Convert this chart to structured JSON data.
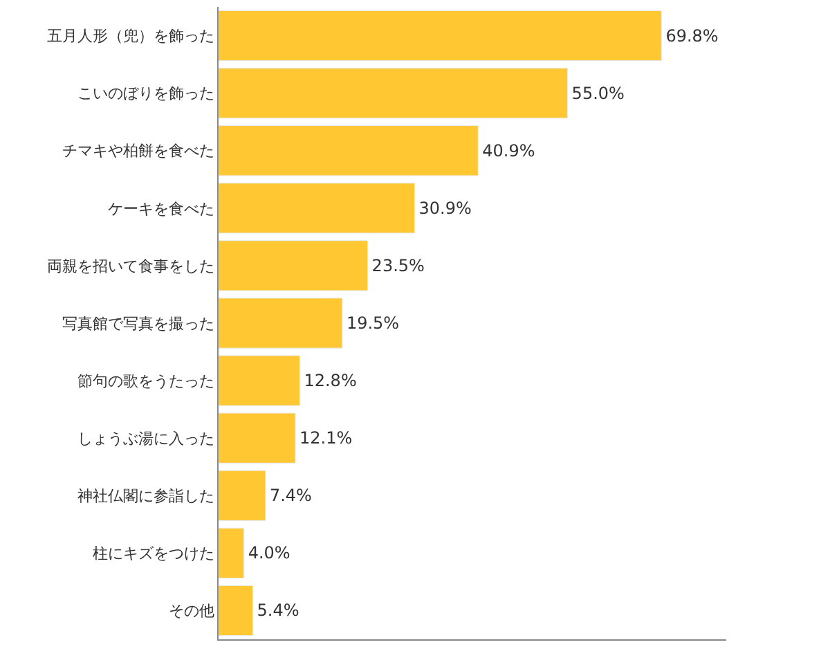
{
  "chart_data": {
    "type": "bar",
    "orientation": "horizontal",
    "categories": [
      "五月人形（兜）を飾った",
      "こいのぼりを飾った",
      "チマキや柏餅を食べた",
      "ケーキを食べた",
      "両親を招いて食事をした",
      "写真館で写真を撮った",
      "節句の歌をうたった",
      "しょうぶ湯に入った",
      "神社仏閣に参詣した",
      "柱にキズをつけた",
      "その他"
    ],
    "values": [
      69.8,
      55.0,
      40.9,
      30.9,
      23.5,
      19.5,
      12.8,
      12.1,
      7.4,
      4.0,
      5.4
    ],
    "value_labels": [
      "69.8%",
      "55.0%",
      "40.9%",
      "30.9%",
      "23.5%",
      "19.5%",
      "12.8%",
      "12.1%",
      "7.4%",
      "4.0%",
      "5.4%"
    ],
    "color": "#ffc832",
    "xlim": [
      0,
      80
    ],
    "tick_labels": "y"
  }
}
